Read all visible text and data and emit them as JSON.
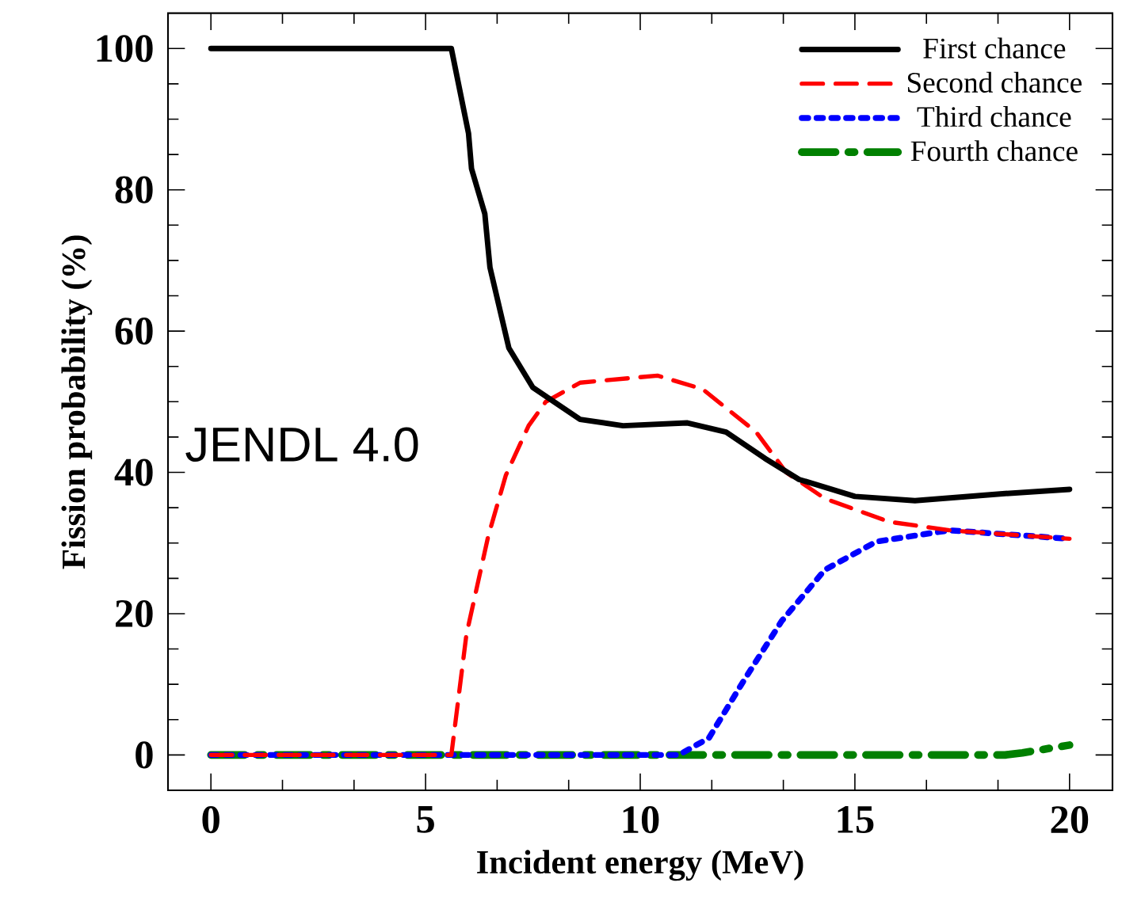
{
  "chart_data": {
    "type": "line",
    "xlabel": "Incident energy (MeV)",
    "ylabel": "Fission probability (%)",
    "xlim": [
      -1,
      21
    ],
    "ylim": [
      -5,
      105
    ],
    "xticks": [
      0,
      5,
      10,
      15,
      20
    ],
    "yticks": [
      0,
      20,
      40,
      60,
      80,
      100
    ],
    "grid": false,
    "legend": "top right",
    "annotations": [
      "JENDL 4.0"
    ],
    "series": [
      {
        "name": "First chance",
        "color": "#000000",
        "line_style": "solid",
        "x": [
          0,
          5.6,
          6.0,
          6.07,
          6.38,
          6.5,
          6.94,
          7.5,
          8.6,
          9.6,
          11.1,
          12.0,
          12.9,
          13.7,
          15.0,
          16.4,
          18.5,
          20
        ],
        "values": [
          100,
          100,
          88,
          83,
          76.6,
          69,
          57.6,
          52,
          47.5,
          46.6,
          47,
          45.7,
          42,
          39,
          36.6,
          36,
          37,
          37.6
        ]
      },
      {
        "name": "Second chance",
        "color": "#ff0000",
        "line_style": "dashed",
        "x": [
          0,
          5.6,
          5.95,
          6.46,
          6.87,
          7.4,
          7.8,
          8.6,
          10.4,
          11.45,
          12.7,
          13.4,
          14.3,
          15.8,
          17.2,
          20
        ],
        "values": [
          0,
          0,
          17,
          31,
          39.6,
          46.6,
          50,
          52.7,
          53.7,
          51.8,
          45.7,
          40,
          36.3,
          33,
          31.8,
          30.6
        ]
      },
      {
        "name": "Third chance",
        "color": "#0000ff",
        "line_style": "dotted",
        "x": [
          0,
          10.9,
          11.6,
          12.4,
          13.3,
          14.3,
          15.5,
          17.2,
          20
        ],
        "values": [
          0,
          0,
          2.4,
          10.4,
          19,
          26.2,
          30.2,
          31.8,
          30.6
        ]
      },
      {
        "name": "Fourth chance",
        "color": "#008000",
        "line_style": "dashdot",
        "x": [
          0,
          18.5,
          18.9,
          20
        ],
        "values": [
          0,
          0,
          0.3,
          1.4
        ]
      }
    ]
  }
}
